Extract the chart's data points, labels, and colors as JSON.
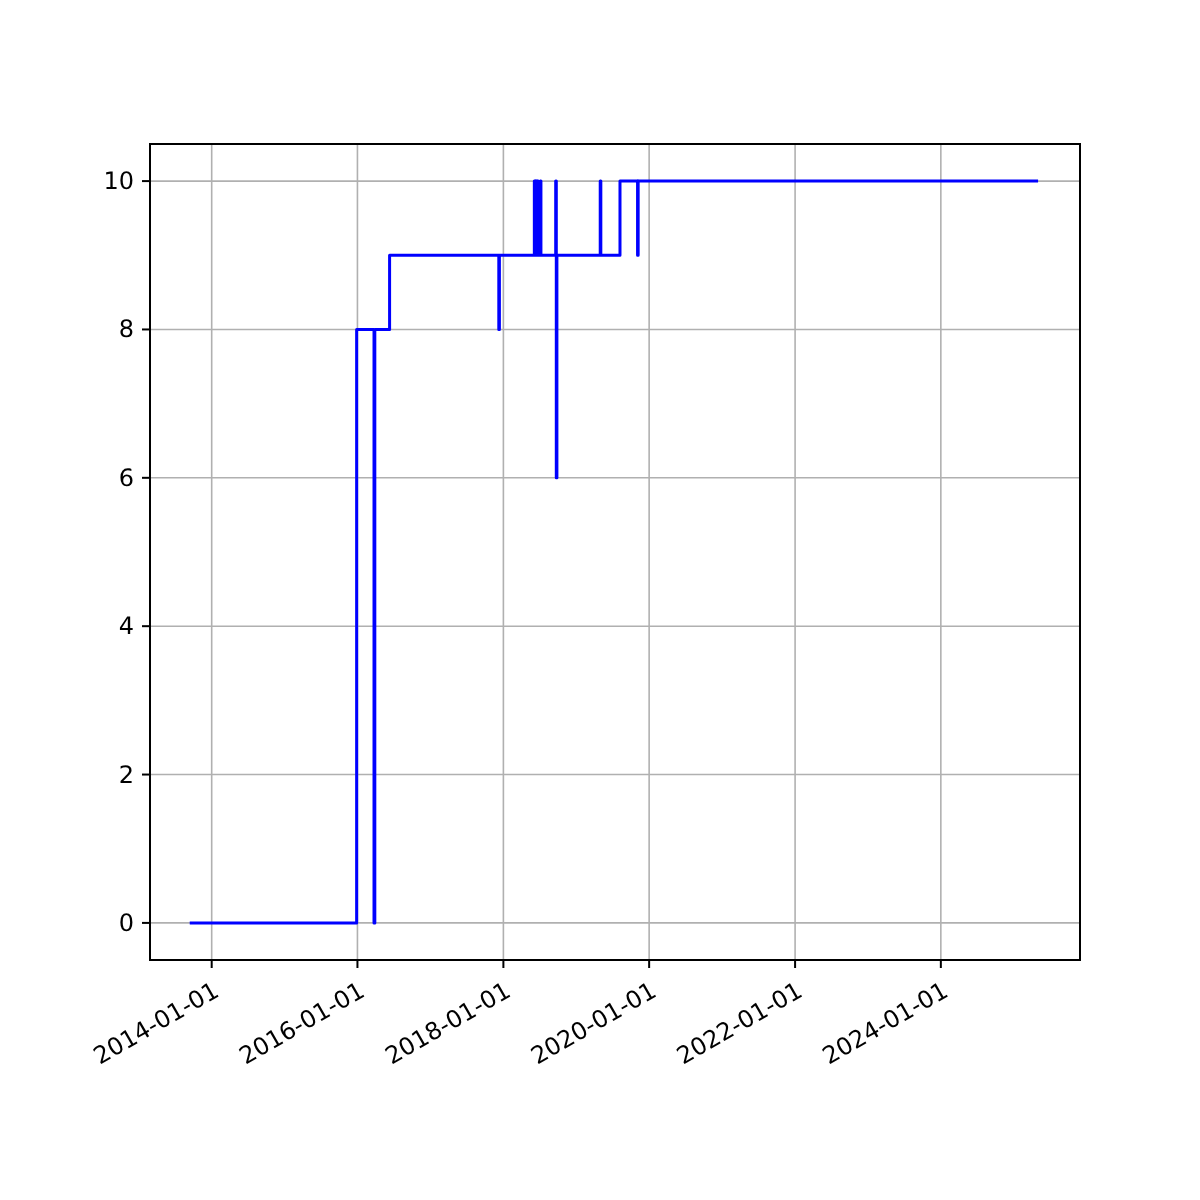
{
  "chart_data": {
    "type": "step",
    "x": [
      "2013-09-13",
      "2015-12-28",
      "2016-03-24",
      "2016-03-28",
      "2016-06-10",
      "2017-12-09",
      "2017-12-12",
      "2018-06-05",
      "2018-06-08",
      "2018-06-12",
      "2018-06-16",
      "2018-06-20",
      "2018-06-24",
      "2018-07-05",
      "2018-07-08",
      "2018-09-20",
      "2018-09-23",
      "2018-09-26",
      "2019-05-01",
      "2019-05-04",
      "2019-08-08",
      "2019-11-04",
      "2019-11-07",
      "2025-05-02"
    ],
    "series": [
      {
        "color": "#0000ff",
        "values": [
          0,
          8,
          0,
          8,
          9,
          8,
          9,
          10,
          9,
          10,
          9,
          10,
          9,
          10,
          9,
          10,
          6,
          9,
          10,
          9,
          10,
          9,
          10,
          10
        ]
      }
    ],
    "xlim": [
      "2013-02-26",
      "2025-11-28"
    ],
    "xticks": [
      "2014-01-01",
      "2016-01-01",
      "2018-01-01",
      "2020-01-01",
      "2022-01-01",
      "2024-01-01"
    ],
    "ylim": [
      -0.5,
      10.5
    ],
    "yticks": [
      0,
      2,
      4,
      6,
      8,
      10
    ],
    "grid": true
  }
}
